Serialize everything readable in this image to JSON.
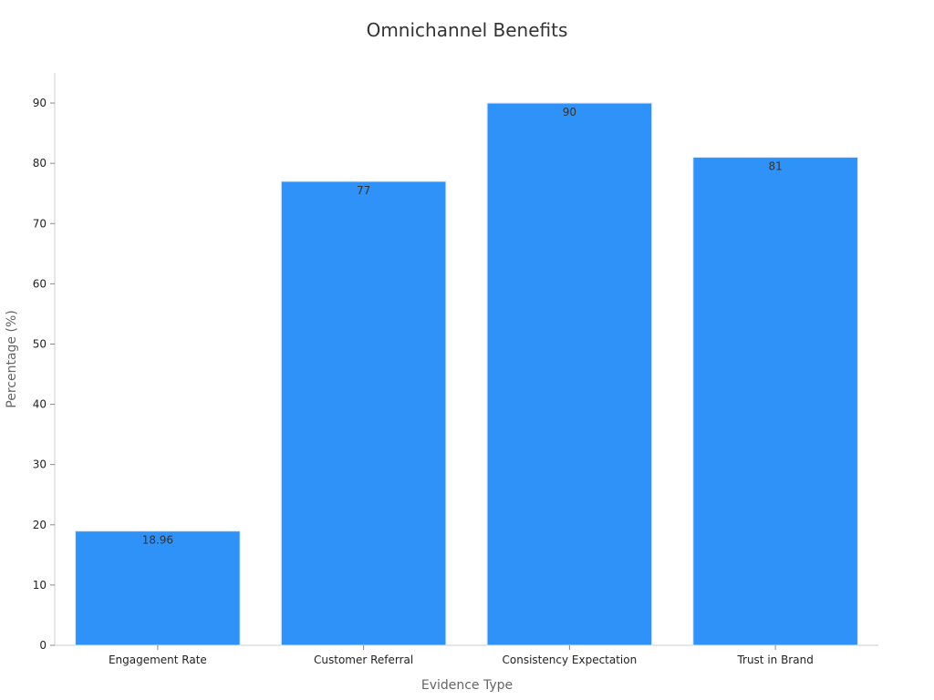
{
  "chart_data": {
    "type": "bar",
    "title": "Omnichannel Benefits",
    "xlabel": "Evidence Type",
    "ylabel": "Percentage (%)",
    "categories": [
      "Engagement Rate",
      "Customer Referral",
      "Consistency Expectation",
      "Trust in Brand"
    ],
    "values": [
      18.96,
      77,
      90,
      81
    ],
    "value_labels": [
      "18.96",
      "77",
      "90",
      "81"
    ],
    "ylim": [
      0,
      95
    ],
    "yticks": [
      0,
      10,
      20,
      30,
      40,
      50,
      60,
      70,
      80,
      90
    ],
    "grid": false,
    "legend": "none",
    "colors": {
      "bar": "#2f92f8",
      "bar_edge": "#d6e9ff",
      "axis": "#cccccc",
      "title": "#333333",
      "axis_label": "#666666",
      "tick_label": "#222222",
      "data_label": "#333333"
    }
  }
}
